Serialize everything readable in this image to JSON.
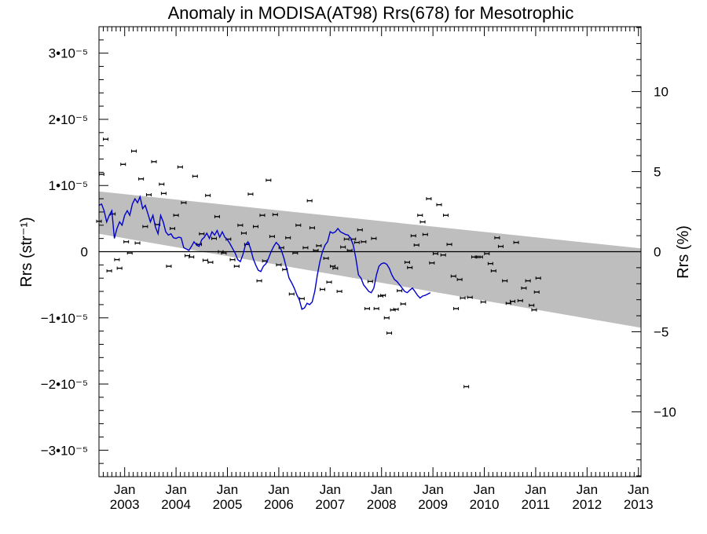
{
  "chart_data": {
    "type": "scatter",
    "title": "Anomaly in MODISA(AT98) Rrs(678) for Mesotrophic",
    "ylabel_left": "Rrs (str⁻¹)",
    "ylabel_right": "Rrs (%)",
    "left_axis": {
      "ylim": [
        -3.4e-05,
        3.4e-05
      ],
      "ticks": [
        {
          "value": 3e-05,
          "label": "3•10⁻⁵"
        },
        {
          "value": 2e-05,
          "label": "2•10⁻⁵"
        },
        {
          "value": 1e-05,
          "label": "1•10⁻⁵"
        },
        {
          "value": 0,
          "label": "0"
        },
        {
          "value": -1e-05,
          "label": "−1•10⁻⁵"
        },
        {
          "value": -2e-05,
          "label": "−2•10⁻⁵"
        },
        {
          "value": -3e-05,
          "label": "−3•10⁻⁵"
        }
      ]
    },
    "right_axis": {
      "ylim": [
        -14.05,
        14.05
      ],
      "ticks": [
        {
          "value": 10,
          "label": "10"
        },
        {
          "value": 5,
          "label": "5"
        },
        {
          "value": 0,
          "label": "0"
        },
        {
          "value": -5,
          "label": "−5"
        },
        {
          "value": -10,
          "label": "−10"
        }
      ]
    },
    "xlim": [
      2002.5,
      2013.05
    ],
    "x_ticks": [
      {
        "value": 2003.0,
        "month": "Jan",
        "year": "2003"
      },
      {
        "value": 2004.0,
        "month": "Jan",
        "year": "2004"
      },
      {
        "value": 2005.0,
        "month": "Jan",
        "year": "2005"
      },
      {
        "value": 2006.0,
        "month": "Jan",
        "year": "2006"
      },
      {
        "value": 2007.0,
        "month": "Jan",
        "year": "2007"
      },
      {
        "value": 2008.0,
        "month": "Jan",
        "year": "2008"
      },
      {
        "value": 2009.0,
        "month": "Jan",
        "year": "2009"
      },
      {
        "value": 2010.0,
        "month": "Jan",
        "year": "2010"
      },
      {
        "value": 2011.0,
        "month": "Jan",
        "year": "2011"
      },
      {
        "value": 2012.0,
        "month": "Jan",
        "year": "2012"
      },
      {
        "value": 2013.0,
        "month": "Jan",
        "year": "2013"
      }
    ],
    "envelope": {
      "upper": [
        [
          2002.5,
          9.1e-06
        ],
        [
          2013.05,
          5e-07
        ]
      ],
      "lower": [
        [
          2002.5,
          2.7e-06
        ],
        [
          2013.05,
          -1.15e-05
        ]
      ],
      "color": "#bebebe"
    },
    "zero_line": 0,
    "series": [
      {
        "kind": "monthly",
        "color": "#000000",
        "points": [
          [
            2002.5,
            4.6e-06
          ],
          [
            2002.55,
            1.17e-05
          ],
          [
            2002.63,
            1.7e-05
          ],
          [
            2002.7,
            -2.9e-06
          ],
          [
            2002.77,
            5.7e-06
          ],
          [
            2002.85,
            -1.2e-06
          ],
          [
            2002.9,
            -2.5e-06
          ],
          [
            2002.97,
            1.32e-05
          ],
          [
            2003.03,
            1.5e-06
          ],
          [
            2003.1,
            -2e-07
          ],
          [
            2003.18,
            1.52e-05
          ],
          [
            2003.25,
            1.3e-06
          ],
          [
            2003.32,
            1.1e-05
          ],
          [
            2003.4,
            3.8e-06
          ],
          [
            2003.47,
            8.6e-06
          ],
          [
            2003.57,
            1.36e-05
          ],
          [
            2003.64,
            4.1e-06
          ],
          [
            2003.72,
            1.02e-05
          ],
          [
            2003.76,
            8.8e-06
          ],
          [
            2003.86,
            -2.2e-06
          ],
          [
            2003.93,
            3.5e-06
          ],
          [
            2004.0,
            5.5e-06
          ],
          [
            2004.08,
            1.28e-05
          ],
          [
            2004.15,
            7.4e-06
          ],
          [
            2004.22,
            -6e-07
          ],
          [
            2004.3,
            -8e-07
          ],
          [
            2004.37,
            1.14e-05
          ],
          [
            2004.45,
            1.1e-06
          ],
          [
            2004.5,
            2.7e-06
          ],
          [
            2004.57,
            -1.3e-06
          ],
          [
            2004.62,
            8.5e-06
          ],
          [
            2004.67,
            -1.6e-06
          ],
          [
            2004.74,
            2e-06
          ],
          [
            2004.8,
            5.3e-06
          ],
          [
            2004.87,
            0.0
          ],
          [
            2004.93,
            -2e-07
          ],
          [
            2005.02,
            1.9e-06
          ],
          [
            2005.1,
            -1.2e-06
          ],
          [
            2005.18,
            -2.2e-06
          ],
          [
            2005.25,
            4e-06
          ],
          [
            2005.32,
            2.8e-06
          ],
          [
            2005.38,
            1.1e-06
          ],
          [
            2005.45,
            8.7e-06
          ],
          [
            2005.55,
            3.8e-06
          ],
          [
            2005.62,
            -4.4e-06
          ],
          [
            2005.68,
            5.5e-06
          ],
          [
            2005.73,
            -1.4e-06
          ],
          [
            2005.8,
            1.08e-05
          ],
          [
            2005.87,
            2.3e-06
          ],
          [
            2005.93,
            5.6e-06
          ],
          [
            2006.0,
            -2e-06
          ],
          [
            2006.05,
            6e-07
          ],
          [
            2006.12,
            -2.7e-06
          ],
          [
            2006.18,
            2.1e-06
          ],
          [
            2006.25,
            -6.4e-06
          ],
          [
            2006.32,
            -2e-07
          ],
          [
            2006.38,
            4e-06
          ],
          [
            2006.45,
            -7.1e-06
          ],
          [
            2006.52,
            6e-07
          ],
          [
            2006.6,
            7.7e-06
          ],
          [
            2006.65,
            3.6e-06
          ],
          [
            2006.72,
            2e-07
          ],
          [
            2006.78,
            9e-07
          ],
          [
            2006.85,
            -5.7e-06
          ],
          [
            2006.92,
            -1e-06
          ],
          [
            2006.98,
            -4.6e-06
          ],
          [
            2007.05,
            -2.2e-06
          ],
          [
            2007.1,
            -2.5e-06
          ],
          [
            2007.18,
            -6e-06
          ],
          [
            2007.25,
            7e-07
          ],
          [
            2007.32,
            1.9e-06
          ],
          [
            2007.38,
            2e-07
          ],
          [
            2007.45,
            1.9e-06
          ],
          [
            2007.52,
            1.4e-06
          ],
          [
            2007.58,
            3.3e-06
          ],
          [
            2007.65,
            1.5e-06
          ],
          [
            2007.72,
            -8.6e-06
          ],
          [
            2007.78,
            -4.5e-06
          ],
          [
            2007.85,
            2e-06
          ],
          [
            2007.9,
            -8.6e-06
          ],
          [
            2007.98,
            -6.7e-06
          ],
          [
            2008.03,
            -6.6e-06
          ],
          [
            2008.1,
            -1e-05
          ],
          [
            2008.15,
            -1.23e-05
          ],
          [
            2008.22,
            -8.8e-06
          ],
          [
            2008.28,
            -8.7e-06
          ],
          [
            2008.35,
            -5.9e-06
          ],
          [
            2008.42,
            -7.9e-06
          ],
          [
            2008.5,
            -1.6e-06
          ],
          [
            2008.55,
            -2.4e-06
          ],
          [
            2008.62,
            2.4e-06
          ],
          [
            2008.68,
            1e-06
          ],
          [
            2008.75,
            5.5e-06
          ],
          [
            2008.8,
            4.5e-06
          ],
          [
            2008.85,
            2.6e-06
          ],
          [
            2008.92,
            8e-06
          ],
          [
            2008.98,
            -1.7e-06
          ],
          [
            2009.05,
            -3e-07
          ],
          [
            2009.12,
            7.1e-06
          ],
          [
            2009.2,
            -5e-07
          ],
          [
            2009.25,
            5.5e-06
          ],
          [
            2009.32,
            1.1e-06
          ],
          [
            2009.4,
            -3.7e-06
          ],
          [
            2009.45,
            -8.6e-06
          ],
          [
            2009.52,
            -4.2e-06
          ],
          [
            2009.58,
            -7e-06
          ],
          [
            2009.65,
            -2.04e-05
          ],
          [
            2009.72,
            -6.9e-06
          ],
          [
            2009.8,
            -8e-07
          ],
          [
            2009.87,
            -8e-07
          ],
          [
            2009.92,
            -8e-07
          ],
          [
            2009.98,
            -7.6e-06
          ],
          [
            2010.05,
            -3e-07
          ],
          [
            2010.12,
            -1.8e-06
          ],
          [
            2010.18,
            -2.9e-06
          ],
          [
            2010.25,
            2.1e-06
          ],
          [
            2010.32,
            8e-07
          ],
          [
            2010.4,
            -4.4e-06
          ],
          [
            2010.47,
            -7.8e-06
          ],
          [
            2010.55,
            -7.5e-06
          ],
          [
            2010.62,
            1.4e-06
          ],
          [
            2010.7,
            -7.4e-06
          ],
          [
            2010.77,
            -5.5e-06
          ],
          [
            2010.85,
            -4.4e-06
          ],
          [
            2010.92,
            -8.1e-06
          ],
          [
            2010.97,
            -8.8e-06
          ],
          [
            2011.02,
            -6.1e-06
          ],
          [
            2011.05,
            -4e-06
          ]
        ]
      },
      {
        "kind": "running-mean",
        "color": "#0000cc",
        "points": [
          [
            2002.5,
            7e-06
          ],
          [
            2002.55,
            7.2e-06
          ],
          [
            2002.6,
            6.2e-06
          ],
          [
            2002.65,
            4.5e-06
          ],
          [
            2002.7,
            5.5e-06
          ],
          [
            2002.75,
            6.2e-06
          ],
          [
            2002.8,
            2e-06
          ],
          [
            2002.85,
            3.5e-06
          ],
          [
            2002.9,
            4.5e-06
          ],
          [
            2002.95,
            4e-06
          ],
          [
            2003.0,
            5.5e-06
          ],
          [
            2003.05,
            6.2e-06
          ],
          [
            2003.1,
            5.5e-06
          ],
          [
            2003.15,
            7.2e-06
          ],
          [
            2003.2,
            8e-06
          ],
          [
            2003.25,
            7.4e-06
          ],
          [
            2003.3,
            8.3e-06
          ],
          [
            2003.35,
            6.5e-06
          ],
          [
            2003.4,
            7e-06
          ],
          [
            2003.45,
            5.8e-06
          ],
          [
            2003.5,
            4.5e-06
          ],
          [
            2003.55,
            5.5e-06
          ],
          [
            2003.6,
            3.7e-06
          ],
          [
            2003.65,
            2.7e-06
          ],
          [
            2003.7,
            5.5e-06
          ],
          [
            2003.75,
            4.5e-06
          ],
          [
            2003.8,
            3e-06
          ],
          [
            2003.85,
            2.5e-06
          ],
          [
            2003.9,
            2.7e-06
          ],
          [
            2003.95,
            2.1e-06
          ],
          [
            2004.0,
            2e-06
          ],
          [
            2004.05,
            2.2e-06
          ],
          [
            2004.1,
            2.1e-06
          ],
          [
            2004.15,
            6e-07
          ],
          [
            2004.2,
            4e-07
          ],
          [
            2004.25,
            2e-07
          ],
          [
            2004.3,
            8e-07
          ],
          [
            2004.35,
            1.5e-06
          ],
          [
            2004.4,
            1e-06
          ],
          [
            2004.45,
            8e-07
          ],
          [
            2004.5,
            1.8e-06
          ],
          [
            2004.55,
            2.2e-06
          ],
          [
            2004.6,
            2.8e-06
          ],
          [
            2004.65,
            2e-06
          ],
          [
            2004.7,
            3e-06
          ],
          [
            2004.75,
            2.5e-06
          ],
          [
            2004.8,
            3.2e-06
          ],
          [
            2004.85,
            2.2e-06
          ],
          [
            2004.9,
            3e-06
          ],
          [
            2004.95,
            2.2e-06
          ],
          [
            2005.0,
            1.8e-06
          ],
          [
            2005.05,
            1.2e-06
          ],
          [
            2005.1,
            5e-07
          ],
          [
            2005.15,
            -2e-07
          ],
          [
            2005.2,
            -1.2e-06
          ],
          [
            2005.25,
            -1.5e-06
          ],
          [
            2005.3,
            -5e-07
          ],
          [
            2005.35,
            1e-06
          ],
          [
            2005.4,
            1.5e-06
          ],
          [
            2005.45,
            5e-07
          ],
          [
            2005.5,
            -1e-06
          ],
          [
            2005.55,
            -2e-06
          ],
          [
            2005.6,
            -2.8e-06
          ],
          [
            2005.65,
            -3e-06
          ],
          [
            2005.7,
            -2.2e-06
          ],
          [
            2005.75,
            -1.8e-06
          ],
          [
            2005.8,
            -1e-06
          ],
          [
            2005.85,
            0.0
          ],
          [
            2005.9,
            8e-07
          ],
          [
            2005.95,
            1.4e-06
          ],
          [
            2006.0,
            1e-06
          ],
          [
            2006.05,
            2e-07
          ],
          [
            2006.1,
            -1e-06
          ],
          [
            2006.15,
            -2.5e-06
          ],
          [
            2006.2,
            -4e-06
          ],
          [
            2006.25,
            -4.7e-06
          ],
          [
            2006.3,
            -5.5e-06
          ],
          [
            2006.35,
            -6.5e-06
          ],
          [
            2006.4,
            -7.3e-06
          ],
          [
            2006.45,
            -8.7e-06
          ],
          [
            2006.5,
            -8.5e-06
          ],
          [
            2006.55,
            -7.8e-06
          ],
          [
            2006.6,
            -8e-06
          ],
          [
            2006.65,
            -7.6e-06
          ],
          [
            2006.7,
            -6e-06
          ],
          [
            2006.75,
            -3.5e-06
          ],
          [
            2006.8,
            -1.5e-06
          ],
          [
            2006.85,
            0.0
          ],
          [
            2006.9,
            1e-06
          ],
          [
            2006.95,
            1.5e-06
          ],
          [
            2007.0,
            3e-06
          ],
          [
            2007.05,
            2.8e-06
          ],
          [
            2007.1,
            3e-06
          ],
          [
            2007.15,
            3.5e-06
          ],
          [
            2007.2,
            3e-06
          ],
          [
            2007.25,
            2.8e-06
          ],
          [
            2007.3,
            2.6e-06
          ],
          [
            2007.35,
            2.5e-06
          ],
          [
            2007.4,
            2e-06
          ],
          [
            2007.45,
            1e-06
          ],
          [
            2007.5,
            -1e-06
          ],
          [
            2007.55,
            -3.5e-06
          ],
          [
            2007.6,
            -4e-06
          ],
          [
            2007.65,
            -5e-06
          ],
          [
            2007.7,
            -5.5e-06
          ],
          [
            2007.75,
            -6e-06
          ],
          [
            2007.8,
            -6.2e-06
          ],
          [
            2007.85,
            -5.5e-06
          ],
          [
            2007.9,
            -3.5e-06
          ],
          [
            2007.95,
            -2.2e-06
          ],
          [
            2008.0,
            -1.8e-06
          ],
          [
            2008.05,
            -1.7e-06
          ],
          [
            2008.1,
            -1.9e-06
          ],
          [
            2008.15,
            -2.5e-06
          ],
          [
            2008.2,
            -3.5e-06
          ],
          [
            2008.25,
            -4.2e-06
          ],
          [
            2008.3,
            -4.5e-06
          ],
          [
            2008.35,
            -5e-06
          ],
          [
            2008.4,
            -5.5e-06
          ],
          [
            2008.45,
            -6e-06
          ],
          [
            2008.5,
            -6.2e-06
          ],
          [
            2008.55,
            -5.8e-06
          ],
          [
            2008.6,
            -5.5e-06
          ],
          [
            2008.65,
            -6e-06
          ],
          [
            2008.7,
            -6.6e-06
          ],
          [
            2008.75,
            -7e-06
          ],
          [
            2008.8,
            -6.7e-06
          ],
          [
            2008.85,
            -6.6e-06
          ],
          [
            2008.9,
            -6.4e-06
          ],
          [
            2008.95,
            -6.2e-06
          ]
        ]
      }
    ]
  }
}
